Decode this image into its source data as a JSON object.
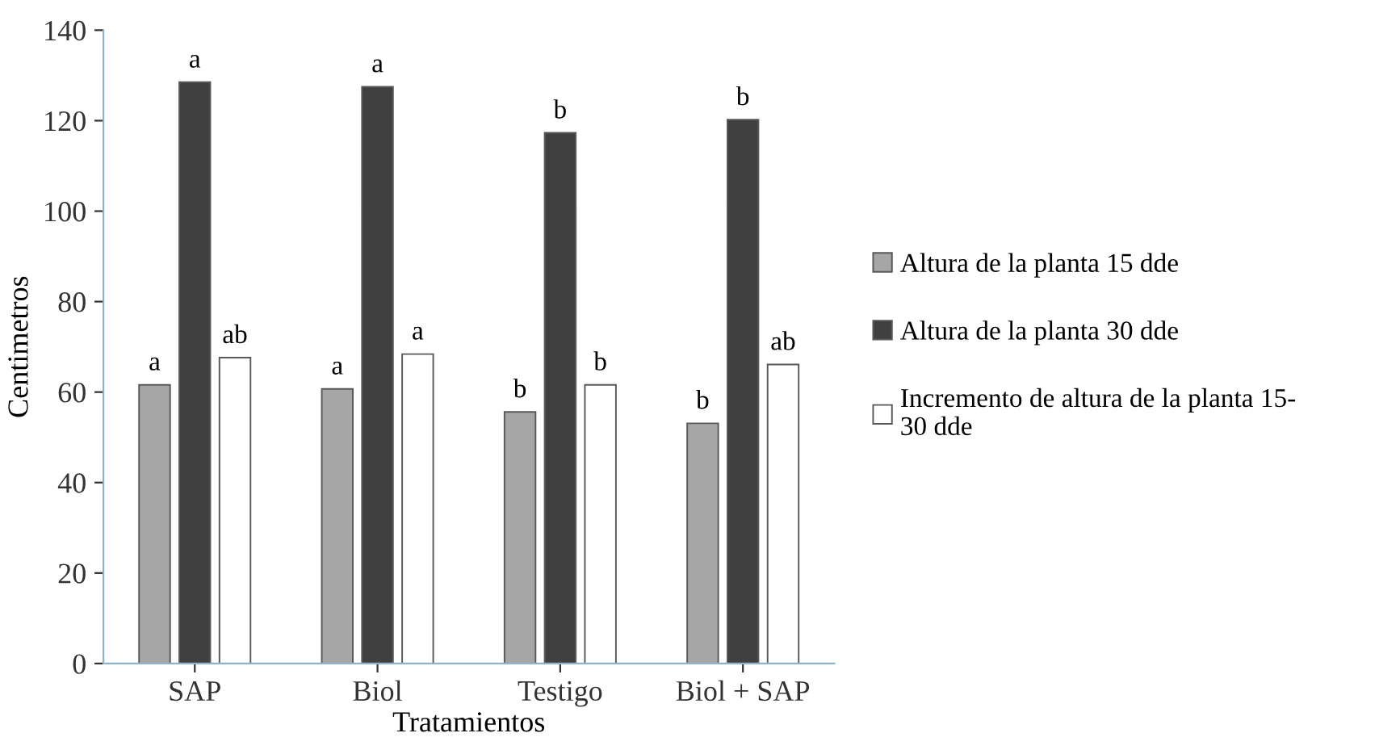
{
  "chart_data": {
    "type": "bar",
    "xlabel": "Tratamientos",
    "ylabel": "Centimetros",
    "categories": [
      "SAP",
      "Biol",
      "Testigo",
      "Biol + SAP"
    ],
    "series": [
      {
        "name": "Altura de la planta 15 dde",
        "color": "#a6a6a6",
        "values": [
          61.6,
          60.7,
          55.6,
          53.1
        ],
        "value_labels": [
          "a",
          "a",
          "b",
          "b"
        ]
      },
      {
        "name": "Altura de la planta 30 dde",
        "color": "#404040",
        "values": [
          128.5,
          127.5,
          117.3,
          120.2
        ],
        "value_labels": [
          "a",
          "a",
          "b",
          "b"
        ]
      },
      {
        "name": "Incremento de altura de la planta 15-\n30 dde",
        "color": "#ffffff",
        "values": [
          67.6,
          68.4,
          61.6,
          66.1
        ],
        "value_labels": [
          "ab",
          "a",
          "b",
          "ab"
        ]
      }
    ],
    "ylim": [
      0,
      140
    ],
    "yticks": [
      0,
      20,
      40,
      60,
      80,
      100,
      120,
      140
    ],
    "grid": false,
    "legend": "right"
  }
}
